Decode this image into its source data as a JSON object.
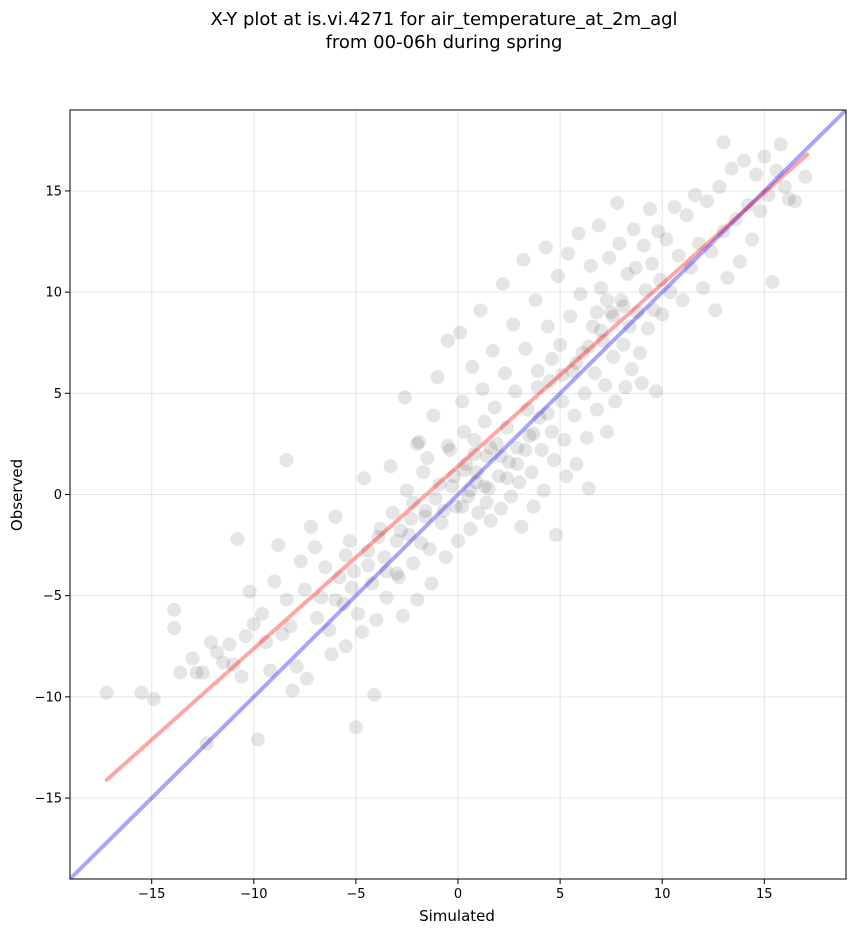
{
  "chart_data": {
    "type": "scatter",
    "title_line1": "X-Y plot at is.vi.4271 for air_temperature_at_2m_agl",
    "title_line2": "from 00-06h during spring",
    "xlabel": "Simulated",
    "ylabel": "Observed",
    "xlim": [
      -19,
      19
    ],
    "ylim": [
      -19,
      19
    ],
    "grid": true,
    "xticks": [
      -15,
      -10,
      -5,
      0,
      5,
      10,
      15
    ],
    "yticks": [
      -15,
      -10,
      -5,
      0,
      5,
      10,
      15
    ],
    "xtick_labels": [
      "−15",
      "−10",
      "−5",
      "0",
      "5",
      "10",
      "15"
    ],
    "ytick_labels": [
      "−15",
      "−10",
      "−5",
      "0",
      "5",
      "10",
      "15"
    ],
    "marker_color": "#000000",
    "marker_opacity": 0.1,
    "identity_line": {
      "x": [
        -19,
        19
      ],
      "y": [
        -19,
        19
      ],
      "color": "#0000ff",
      "opacity": 0.35
    },
    "regression_line": {
      "x": [
        -17.2,
        17.1
      ],
      "y": [
        -14.1,
        16.8
      ],
      "color": "#ff0000",
      "opacity": 0.35
    },
    "points": [
      [
        -17.2,
        -9.8
      ],
      [
        -15.5,
        -9.8
      ],
      [
        -14.9,
        -10.1
      ],
      [
        -13.9,
        -5.7
      ],
      [
        -13.9,
        -6.6
      ],
      [
        -13.6,
        -8.8
      ],
      [
        -13,
        -8.1
      ],
      [
        -12.8,
        -8.8
      ],
      [
        -12.5,
        -8.8
      ],
      [
        -12.3,
        -12.3
      ],
      [
        -12.1,
        -7.3
      ],
      [
        -11.8,
        -7.8
      ],
      [
        -11.5,
        -8.3
      ],
      [
        -11.2,
        -7.4
      ],
      [
        -11,
        -8.4
      ],
      [
        -10.8,
        -2.2
      ],
      [
        -10.6,
        -9.0
      ],
      [
        -10.4,
        -7.0
      ],
      [
        -10.2,
        -4.8
      ],
      [
        -10.0,
        -6.4
      ],
      [
        -9.8,
        -12.1
      ],
      [
        -9.6,
        -5.9
      ],
      [
        -9.4,
        -7.3
      ],
      [
        -9.2,
        -8.7
      ],
      [
        -9.0,
        -4.3
      ],
      [
        -8.8,
        -2.5
      ],
      [
        -8.6,
        -6.9
      ],
      [
        -8.4,
        1.7
      ],
      [
        -8.4,
        -5.2
      ],
      [
        -8.2,
        -6.5
      ],
      [
        -8.1,
        -9.7
      ],
      [
        -7.9,
        -8.5
      ],
      [
        -7.7,
        -3.3
      ],
      [
        -7.5,
        -4.7
      ],
      [
        -7.4,
        -9.1
      ],
      [
        -7.2,
        -1.6
      ],
      [
        -7.0,
        -2.6
      ],
      [
        -6.9,
        -6.1
      ],
      [
        -6.7,
        -5.1
      ],
      [
        -6.5,
        -3.6
      ],
      [
        -6.3,
        -6.7
      ],
      [
        -6.2,
        -7.9
      ],
      [
        -6.0,
        -1.1
      ],
      [
        -5.8,
        -4.1
      ],
      [
        -5.6,
        -5.4
      ],
      [
        -5.5,
        -7.5
      ],
      [
        -5.3,
        -2.3
      ],
      [
        -5.1,
        -3.8
      ],
      [
        -5.0,
        -11.5
      ],
      [
        -4.9,
        -5.9
      ],
      [
        -4.7,
        -6.8
      ],
      [
        -4.6,
        0.8
      ],
      [
        -4.4,
        -2.8
      ],
      [
        -4.2,
        -4.4
      ],
      [
        -4.1,
        -9.9
      ],
      [
        -4.0,
        -6.2
      ],
      [
        -3.8,
        -1.7
      ],
      [
        -3.6,
        -3.1
      ],
      [
        -3.5,
        -5.1
      ],
      [
        -3.3,
        1.4
      ],
      [
        -3.2,
        -0.9
      ],
      [
        -3.0,
        -2.3
      ],
      [
        -2.9,
        -4.1
      ],
      [
        -2.7,
        -6.0
      ],
      [
        -2.6,
        4.8
      ],
      [
        -2.5,
        0.2
      ],
      [
        -2.3,
        -1.2
      ],
      [
        -2.2,
        -3.4
      ],
      [
        -2.0,
        -5.2
      ],
      [
        -1.9,
        2.6
      ],
      [
        -1.7,
        1.1
      ],
      [
        -1.6,
        -0.8
      ],
      [
        -1.4,
        -2.7
      ],
      [
        -1.3,
        -4.4
      ],
      [
        -1.2,
        3.9
      ],
      [
        -1.0,
        5.8
      ],
      [
        -0.9,
        0.5
      ],
      [
        -0.8,
        -1.4
      ],
      [
        -0.6,
        -3.1
      ],
      [
        -0.5,
        7.6
      ],
      [
        -0.4,
        2.2
      ],
      [
        -0.2,
        0.9
      ],
      [
        -0.1,
        -0.6
      ],
      [
        0.0,
        -2.3
      ],
      [
        0.1,
        8.0
      ],
      [
        0.2,
        4.6
      ],
      [
        0.3,
        3.1
      ],
      [
        0.4,
        1.5
      ],
      [
        0.5,
        -0.1
      ],
      [
        0.6,
        -1.7
      ],
      [
        0.7,
        6.3
      ],
      [
        0.8,
        2.7
      ],
      [
        0.9,
        0.6
      ],
      [
        1.0,
        -0.9
      ],
      [
        1.1,
        9.1
      ],
      [
        1.2,
        5.2
      ],
      [
        1.3,
        3.6
      ],
      [
        1.4,
        1.9
      ],
      [
        1.5,
        0.3
      ],
      [
        1.6,
        -1.3
      ],
      [
        1.7,
        7.1
      ],
      [
        1.8,
        4.3
      ],
      [
        1.9,
        2.5
      ],
      [
        2.0,
        0.9
      ],
      [
        2.1,
        -0.7
      ],
      [
        2.2,
        10.4
      ],
      [
        2.3,
        6.0
      ],
      [
        2.4,
        3.3
      ],
      [
        2.5,
        1.6
      ],
      [
        2.6,
        -0.1
      ],
      [
        2.7,
        8.4
      ],
      [
        2.8,
        5.1
      ],
      [
        2.9,
        2.3
      ],
      [
        3.0,
        0.6
      ],
      [
        3.1,
        -1.6
      ],
      [
        3.2,
        11.6
      ],
      [
        3.3,
        7.2
      ],
      [
        3.4,
        4.2
      ],
      [
        3.5,
        2.9
      ],
      [
        3.6,
        1.1
      ],
      [
        3.7,
        -0.6
      ],
      [
        3.8,
        9.6
      ],
      [
        3.9,
        6.1
      ],
      [
        4.0,
        3.8
      ],
      [
        4.1,
        2.2
      ],
      [
        4.2,
        0.2
      ],
      [
        4.3,
        12.2
      ],
      [
        4.4,
        8.3
      ],
      [
        4.5,
        5.6
      ],
      [
        4.6,
        3.1
      ],
      [
        4.7,
        1.7
      ],
      [
        4.8,
        -2.0
      ],
      [
        4.9,
        10.8
      ],
      [
        5.0,
        7.4
      ],
      [
        5.1,
        4.6
      ],
      [
        5.2,
        2.7
      ],
      [
        5.3,
        0.9
      ],
      [
        5.4,
        11.9
      ],
      [
        5.5,
        8.8
      ],
      [
        5.6,
        6.1
      ],
      [
        5.7,
        3.9
      ],
      [
        5.8,
        1.5
      ],
      [
        5.9,
        12.9
      ],
      [
        6.0,
        9.9
      ],
      [
        6.1,
        7.0
      ],
      [
        6.2,
        5.0
      ],
      [
        6.3,
        2.8
      ],
      [
        6.4,
        0.3
      ],
      [
        6.5,
        11.3
      ],
      [
        6.6,
        8.3
      ],
      [
        6.7,
        6.0
      ],
      [
        6.8,
        4.2
      ],
      [
        6.9,
        13.3
      ],
      [
        7.0,
        10.2
      ],
      [
        7.1,
        7.6
      ],
      [
        7.2,
        5.4
      ],
      [
        7.3,
        3.1
      ],
      [
        7.4,
        11.7
      ],
      [
        7.5,
        9.0
      ],
      [
        7.6,
        6.8
      ],
      [
        7.7,
        4.6
      ],
      [
        7.8,
        14.4
      ],
      [
        7.9,
        12.4
      ],
      [
        8.0,
        9.6
      ],
      [
        8.1,
        7.4
      ],
      [
        8.2,
        5.3
      ],
      [
        8.3,
        10.9
      ],
      [
        8.4,
        8.3
      ],
      [
        8.5,
        6.2
      ],
      [
        8.6,
        13.1
      ],
      [
        8.7,
        11.2
      ],
      [
        8.8,
        9.0
      ],
      [
        8.9,
        7.0
      ],
      [
        9.0,
        5.5
      ],
      [
        9.1,
        12.3
      ],
      [
        9.2,
        10.1
      ],
      [
        9.3,
        8.2
      ],
      [
        9.4,
        14.1
      ],
      [
        9.5,
        11.4
      ],
      [
        9.6,
        9.1
      ],
      [
        9.7,
        5.1
      ],
      [
        9.8,
        13.0
      ],
      [
        9.9,
        10.6
      ],
      [
        10.0,
        8.9
      ],
      [
        10.2,
        12.6
      ],
      [
        10.4,
        10.0
      ],
      [
        10.6,
        14.2
      ],
      [
        10.8,
        11.8
      ],
      [
        11.0,
        9.6
      ],
      [
        11.2,
        13.8
      ],
      [
        11.4,
        11.2
      ],
      [
        11.6,
        14.8
      ],
      [
        11.8,
        12.4
      ],
      [
        12.0,
        10.2
      ],
      [
        12.2,
        14.5
      ],
      [
        12.4,
        12.0
      ],
      [
        12.6,
        9.1
      ],
      [
        12.8,
        15.2
      ],
      [
        13.0,
        13.0
      ],
      [
        13.2,
        10.7
      ],
      [
        13.4,
        16.1
      ],
      [
        13.6,
        13.6
      ],
      [
        13.8,
        11.5
      ],
      [
        14.0,
        16.5
      ],
      [
        14.2,
        14.3
      ],
      [
        14.4,
        12.6
      ],
      [
        14.6,
        15.8
      ],
      [
        14.8,
        14.0
      ],
      [
        15.0,
        16.7
      ],
      [
        15.2,
        14.8
      ],
      [
        15.4,
        10.5
      ],
      [
        15.6,
        16.0
      ],
      [
        15.8,
        17.3
      ],
      [
        16.0,
        15.2
      ],
      [
        16.2,
        14.6
      ],
      [
        16.5,
        14.5
      ],
      [
        17.0,
        15.7
      ],
      [
        13.0,
        17.4
      ],
      [
        -2.0,
        2.5
      ],
      [
        -1.5,
        1.8
      ],
      [
        -0.5,
        2.4
      ],
      [
        0.3,
        1.2
      ],
      [
        0.8,
        2.0
      ],
      [
        1.3,
        0.4
      ],
      [
        1.6,
        2.3
      ],
      [
        2.4,
        0.8
      ],
      [
        2.9,
        1.5
      ],
      [
        3.3,
        2.2
      ],
      [
        3.7,
        3.0
      ],
      [
        4.4,
        4.0
      ],
      [
        -3.5,
        -3.8
      ],
      [
        -2.8,
        -1.8
      ],
      [
        -2.2,
        -0.4
      ],
      [
        -1.8,
        -2.4
      ],
      [
        -1.1,
        -0.2
      ],
      [
        -0.3,
        0.4
      ],
      [
        0.2,
        -0.6
      ],
      [
        0.9,
        1.1
      ],
      [
        1.4,
        -0.4
      ],
      [
        2.1,
        1.9
      ],
      [
        -5.5,
        -3.0
      ],
      [
        -6.0,
        -5.2
      ],
      [
        -5.2,
        -4.6
      ],
      [
        -4.4,
        -3.5
      ],
      [
        -3.9,
        -2.1
      ],
      [
        -3.0,
        -3.9
      ],
      [
        -2.4,
        -2.0
      ],
      [
        -1.6,
        -1.1
      ],
      [
        -0.7,
        -0.8
      ],
      [
        0.6,
        0.2
      ],
      [
        5.8,
        6.5
      ],
      [
        6.4,
        7.3
      ],
      [
        7.0,
        8.1
      ],
      [
        7.6,
        8.8
      ],
      [
        8.1,
        9.3
      ],
      [
        5.1,
        5.9
      ],
      [
        4.6,
        6.7
      ],
      [
        3.9,
        5.3
      ],
      [
        6.8,
        9.0
      ],
      [
        7.3,
        9.6
      ]
    ]
  }
}
